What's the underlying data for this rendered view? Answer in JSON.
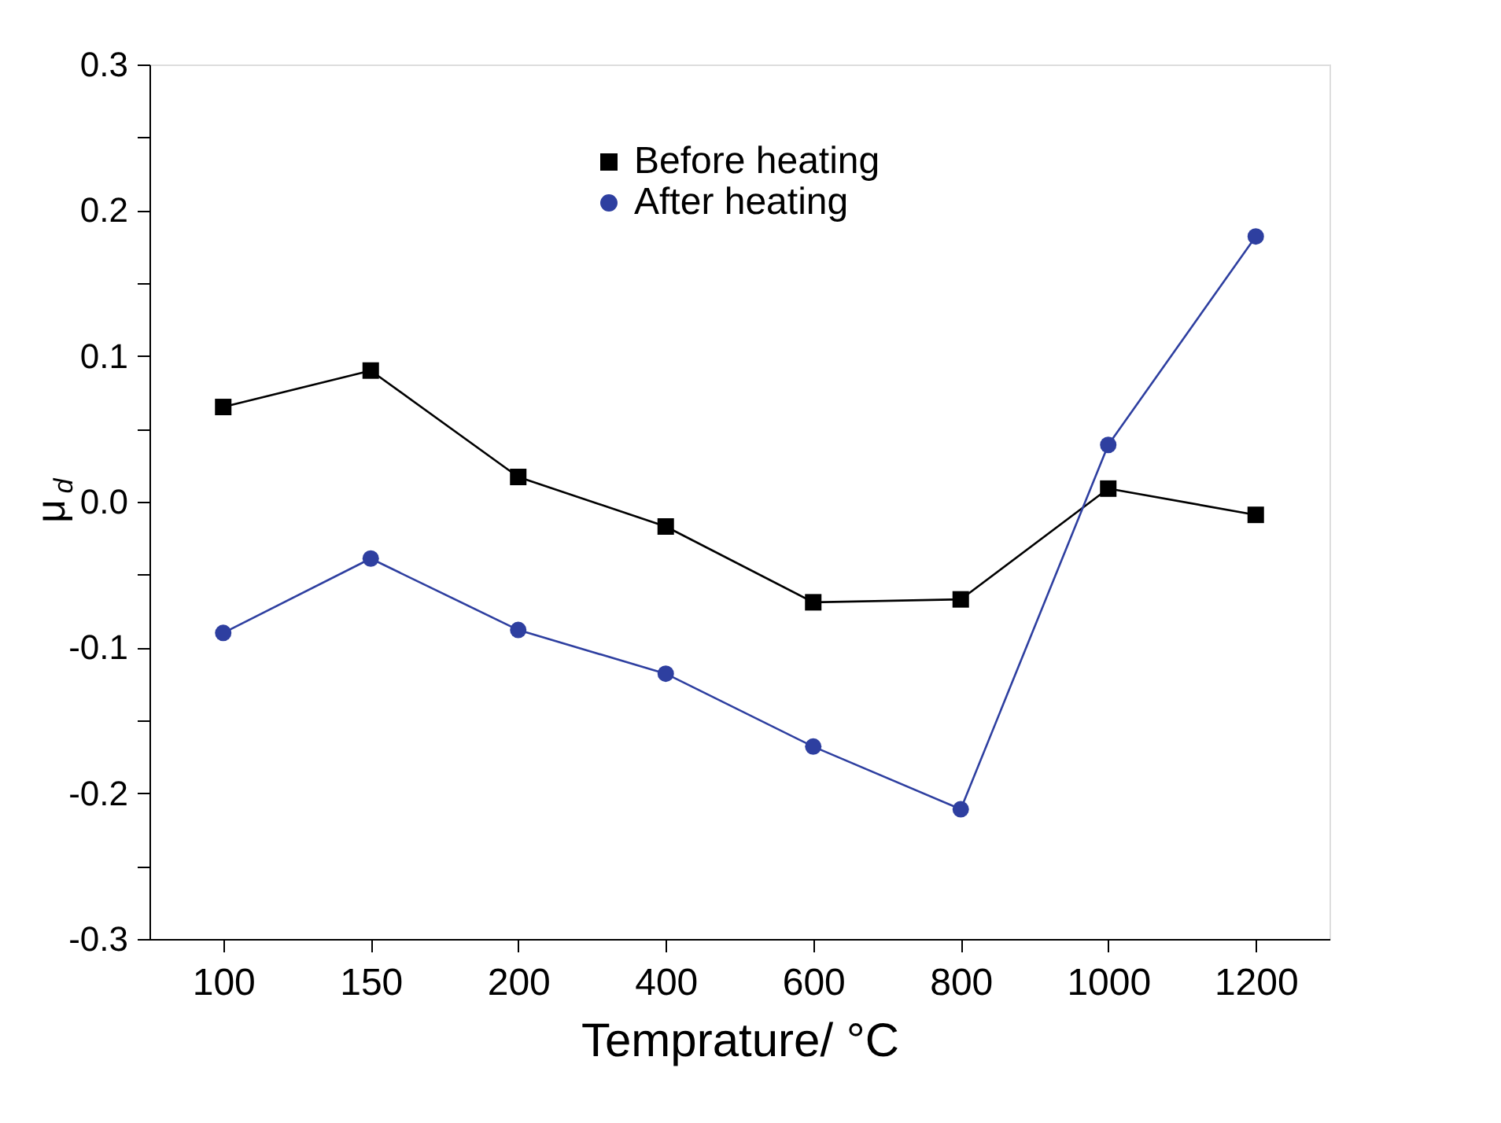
{
  "chart_data": {
    "type": "line",
    "xlabel": "Temprature/ °C",
    "ylabel": "μ$_{d}$",
    "categories": [
      "100",
      "150",
      "200",
      "400",
      "600",
      "800",
      "1000",
      "1200"
    ],
    "series": [
      {
        "name": "Before heating",
        "color": "#000000",
        "marker": "square",
        "values": [
          0.065,
          0.09,
          0.017,
          -0.017,
          -0.069,
          -0.067,
          0.009,
          -0.009
        ]
      },
      {
        "name": "After heating",
        "color": "#2e3fa0",
        "marker": "circle",
        "values": [
          -0.09,
          -0.039,
          -0.088,
          -0.118,
          -0.168,
          -0.211,
          0.039,
          0.182
        ]
      }
    ],
    "ylim": [
      -0.3,
      0.3
    ],
    "yticks": [
      -0.3,
      {
        "value": -0.25,
        "label": null
      },
      -0.2,
      {
        "value": -0.15,
        "label": null
      },
      -0.1,
      {
        "value": -0.05,
        "label": null
      },
      {
        "value": 0,
        "label": "0.0"
      },
      {
        "value": 0.05,
        "label": null
      },
      0.1,
      {
        "value": 0.15,
        "label": null
      },
      0.2,
      {
        "value": 0.25,
        "label": null
      },
      0.3
    ],
    "grid": false,
    "legend": "top",
    "line_style": "solid"
  }
}
